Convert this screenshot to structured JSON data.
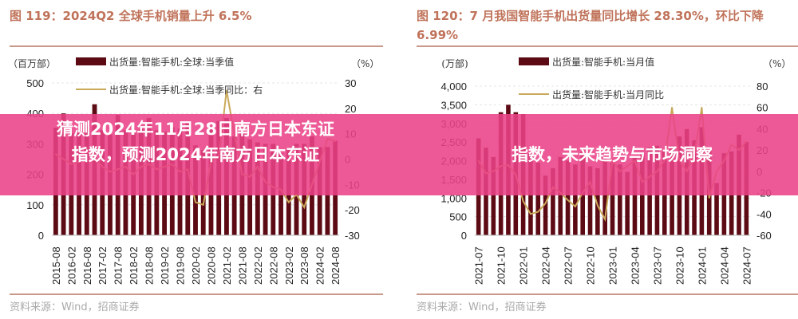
{
  "banner": {
    "line1": "猜测2024年11月28日南方日本东证指数，预测2024年南方日本东证",
    "line2": "指数，未来趋势与市场洞察",
    "color": "#ea4288"
  },
  "source_label": "资料来源：Wind，招商证券",
  "colors": {
    "bar": "#5c0a14",
    "line": "#c9a95a",
    "title": "#c0735a"
  },
  "chart_data": [
    {
      "type": "bar+line",
      "title": "图 119：2024Q2 全球手机销量上升 6.5%",
      "left_unit": "（百万部）",
      "right_unit": "（%）",
      "ylim": [
        0,
        500
      ],
      "y2lim": [
        -30,
        30
      ],
      "yticks": [
        "0",
        "100",
        "200",
        "300",
        "400",
        "500"
      ],
      "y2ticks": [
        "-30",
        "-20",
        "-10",
        "0",
        "10",
        "20",
        "30"
      ],
      "xticks": [
        "2015-08",
        "2016-02",
        "2016-08",
        "2017-02",
        "2017-08",
        "2018-02",
        "2018-08",
        "2019-02",
        "2019-08",
        "2020-02",
        "2020-08",
        "2021-02",
        "2021-08",
        "2022-02",
        "2022-08",
        "2023-02",
        "2023-08",
        "2024-02",
        "2024-08"
      ],
      "series": [
        {
          "name": "出货量:智能手机:全球:当季值",
          "type": "bar",
          "values": [
            353,
            400,
            335,
            345,
            360,
            430,
            345,
            330,
            395,
            345,
            335,
            350,
            385,
            345,
            340,
            355,
            350,
            370,
            295,
            280,
            350,
            375,
            385,
            325,
            340,
            315,
            305,
            300,
            300,
            270,
            280,
            300,
            300,
            325,
            290,
            290,
            310
          ]
        },
        {
          "name": "出货量:智能手机:全球:当季同比：右",
          "type": "line",
          "values": [
            2,
            0,
            -2,
            -1,
            3,
            1,
            -3,
            -5,
            -4,
            -3,
            -6,
            -3,
            -2,
            -4,
            -3,
            -2,
            -5,
            -4,
            -17,
            -18,
            -1,
            1,
            27,
            10,
            -6,
            -7,
            -3,
            -9,
            -11,
            -12,
            -17,
            -14,
            -19,
            -10,
            -1,
            8,
            7
          ]
        }
      ]
    },
    {
      "type": "bar+line",
      "title": "图 120：7 月我国智能手机出货量同比增长 28.30%，环比下降 6.99%",
      "left_unit": "(万部)",
      "right_unit": "（%）",
      "ylim": [
        0,
        4000
      ],
      "y2lim": [
        -60,
        80
      ],
      "yticks": [
        "0",
        "500",
        "1,000",
        "1,500",
        "2,000",
        "2,500",
        "3,000",
        "3,500",
        "4,000"
      ],
      "y2ticks": [
        "-60",
        "-40",
        "-20",
        "0",
        "20",
        "40",
        "60",
        "80"
      ],
      "xticks": [
        "2021-07",
        "2021-10",
        "2022-01",
        "2022-04",
        "2022-07",
        "2022-10",
        "2023-01",
        "2023-04",
        "2023-07",
        "2023-10",
        "2024-01",
        "2024-04",
        "2024-07"
      ],
      "series": [
        {
          "name": "出货量:智能手机:当月值",
          "type": "bar",
          "values": [
            2600,
            2350,
            2100,
            3300,
            3500,
            3300,
            3250,
            2200,
            1950,
            1600,
            1800,
            2100,
            2000,
            1900,
            2250,
            1850,
            1800,
            2050,
            1950,
            1900,
            1700,
            2100,
            2200,
            2350,
            2400,
            2300,
            2400,
            2650,
            2850,
            2550,
            2900,
            2300,
            1400,
            2200,
            2250,
            2700,
            2500
          ]
        },
        {
          "name": "出货量:智能手机:当月同比",
          "type": "line",
          "values": [
            10,
            -2,
            0,
            5,
            6,
            -3,
            -28,
            -40,
            -38,
            -30,
            -15,
            -20,
            -27,
            -33,
            -20,
            -10,
            -32,
            -45,
            10,
            0,
            5,
            10,
            -10,
            -5,
            0,
            10,
            60,
            10,
            0,
            15,
            60,
            -25,
            0,
            10,
            25,
            20,
            28
          ]
        }
      ]
    }
  ]
}
